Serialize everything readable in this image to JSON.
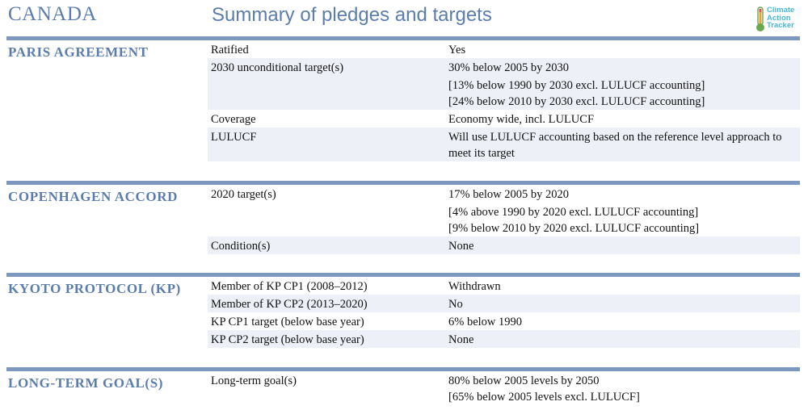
{
  "header": {
    "country": "CANADA",
    "title": "Summary of pledges and targets"
  },
  "logo": {
    "lines": [
      "Climate",
      "Action",
      "Tracker"
    ]
  },
  "sections": [
    {
      "title": "PARIS AGREEMENT",
      "rows": [
        {
          "label": "Ratified",
          "value": [
            "Yes"
          ]
        },
        {
          "label": "2030 unconditional target(s)",
          "value": [
            "30% below 2005 by 2030",
            "[13% below 1990 by 2030 excl. LULUCF accounting]",
            "[24% below 2010 by 2030 excl. LULUCF accounting]"
          ]
        },
        {
          "label": "Coverage",
          "value": [
            "Economy wide, incl. LULUCF"
          ]
        },
        {
          "label": "LULUCF",
          "value": [
            "Will use LULUCF accounting based on the reference level approach to",
            "meet its target"
          ]
        }
      ]
    },
    {
      "title": "COPENHAGEN ACCORD",
      "rows": [
        {
          "label": "2020 target(s)",
          "value": [
            "17% below 2005 by 2020",
            "[4% above 1990 by 2020 excl. LULUCF accounting]",
            "[9% below 2010 by 2020 excl. LULUCF accounting]"
          ]
        },
        {
          "label": "Condition(s)",
          "value": [
            "None"
          ]
        }
      ]
    },
    {
      "title": "KYOTO PROTOCOL (KP)",
      "rows": [
        {
          "label": "Member of KP CP1 (2008–2012)",
          "value": [
            "Withdrawn"
          ]
        },
        {
          "label": "Member of KP CP2 (2013–2020)",
          "value": [
            "No"
          ]
        },
        {
          "label": "KP CP1 target (below base year)",
          "value": [
            "6% below 1990"
          ]
        },
        {
          "label": "KP CP2 target (below base year)",
          "value": [
            "None"
          ]
        }
      ]
    },
    {
      "title": "LONG-TERM GOAL(S)",
      "rows": [
        {
          "label": "Long-term goal(s)",
          "value": [
            "80% below 2005 levels by 2050",
            "[65% below 2005 levels excl. LULUCF]"
          ]
        }
      ]
    }
  ]
}
